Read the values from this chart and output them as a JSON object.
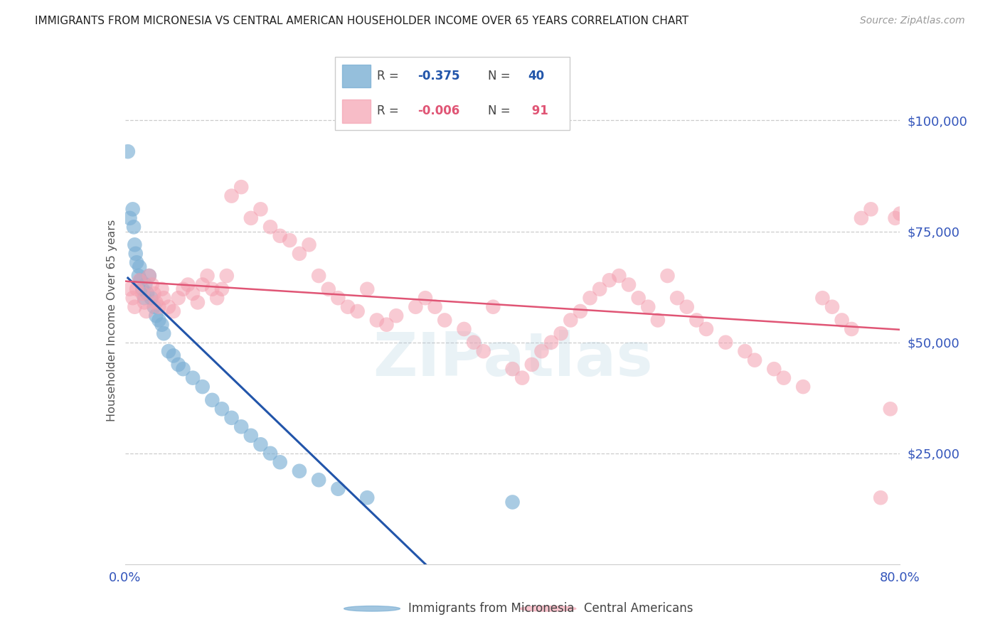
{
  "title": "IMMIGRANTS FROM MICRONESIA VS CENTRAL AMERICAN HOUSEHOLDER INCOME OVER 65 YEARS CORRELATION CHART",
  "source": "Source: ZipAtlas.com",
  "ylabel": "Householder Income Over 65 years",
  "ytick_values": [
    25000,
    50000,
    75000,
    100000
  ],
  "ytick_labels": [
    "$25,000",
    "$50,000",
    "$75,000",
    "$100,000"
  ],
  "blue_color": "#7BAFD4",
  "pink_color": "#F4A0B0",
  "blue_line_color": "#2255AA",
  "pink_line_color": "#E05575",
  "dash_color": "#AAAAAA",
  "watermark": "ZIPatlas",
  "xmin": 0.0,
  "xmax": 80.0,
  "ymin": 0,
  "ymax": 110000,
  "blue_x": [
    0.3,
    0.5,
    0.8,
    0.9,
    1.0,
    1.1,
    1.2,
    1.4,
    1.5,
    1.6,
    1.8,
    2.0,
    2.1,
    2.3,
    2.5,
    2.7,
    3.0,
    3.2,
    3.5,
    3.8,
    4.0,
    4.5,
    5.0,
    5.5,
    6.0,
    7.0,
    8.0,
    9.0,
    10.0,
    11.0,
    12.0,
    13.0,
    14.0,
    15.0,
    16.0,
    18.0,
    20.0,
    22.0,
    25.0,
    40.0
  ],
  "blue_y": [
    93000,
    78000,
    80000,
    76000,
    72000,
    70000,
    68000,
    65000,
    67000,
    64000,
    62000,
    60000,
    63000,
    61000,
    65000,
    60000,
    58000,
    56000,
    55000,
    54000,
    52000,
    48000,
    47000,
    45000,
    44000,
    42000,
    40000,
    37000,
    35000,
    33000,
    31000,
    29000,
    27000,
    25000,
    23000,
    21000,
    19000,
    17000,
    15000,
    14000
  ],
  "pink_x": [
    0.5,
    0.8,
    1.0,
    1.2,
    1.5,
    1.8,
    2.0,
    2.2,
    2.5,
    2.8,
    3.0,
    3.2,
    3.5,
    3.8,
    4.0,
    4.5,
    5.0,
    5.5,
    6.0,
    6.5,
    7.0,
    7.5,
    8.0,
    8.5,
    9.0,
    9.5,
    10.0,
    10.5,
    11.0,
    12.0,
    13.0,
    14.0,
    15.0,
    16.0,
    17.0,
    18.0,
    19.0,
    20.0,
    21.0,
    22.0,
    23.0,
    24.0,
    25.0,
    26.0,
    27.0,
    28.0,
    30.0,
    31.0,
    32.0,
    33.0,
    35.0,
    36.0,
    37.0,
    38.0,
    40.0,
    41.0,
    42.0,
    43.0,
    44.0,
    45.0,
    46.0,
    47.0,
    48.0,
    49.0,
    50.0,
    51.0,
    52.0,
    53.0,
    54.0,
    55.0,
    56.0,
    57.0,
    58.0,
    59.0,
    60.0,
    62.0,
    64.0,
    65.0,
    67.0,
    68.0,
    70.0,
    72.0,
    73.0,
    74.0,
    75.0,
    76.0,
    77.0,
    78.0,
    79.0,
    79.5,
    80.0
  ],
  "pink_y": [
    62000,
    60000,
    58000,
    62000,
    64000,
    61000,
    59000,
    57000,
    65000,
    63000,
    61000,
    59000,
    58000,
    62000,
    60000,
    58000,
    57000,
    60000,
    62000,
    63000,
    61000,
    59000,
    63000,
    65000,
    62000,
    60000,
    62000,
    65000,
    83000,
    85000,
    78000,
    80000,
    76000,
    74000,
    73000,
    70000,
    72000,
    65000,
    62000,
    60000,
    58000,
    57000,
    62000,
    55000,
    54000,
    56000,
    58000,
    60000,
    58000,
    55000,
    53000,
    50000,
    48000,
    58000,
    44000,
    42000,
    45000,
    48000,
    50000,
    52000,
    55000,
    57000,
    60000,
    62000,
    64000,
    65000,
    63000,
    60000,
    58000,
    55000,
    65000,
    60000,
    58000,
    55000,
    53000,
    50000,
    48000,
    46000,
    44000,
    42000,
    40000,
    60000,
    58000,
    55000,
    53000,
    78000,
    80000,
    15000,
    35000,
    78000,
    79000
  ]
}
